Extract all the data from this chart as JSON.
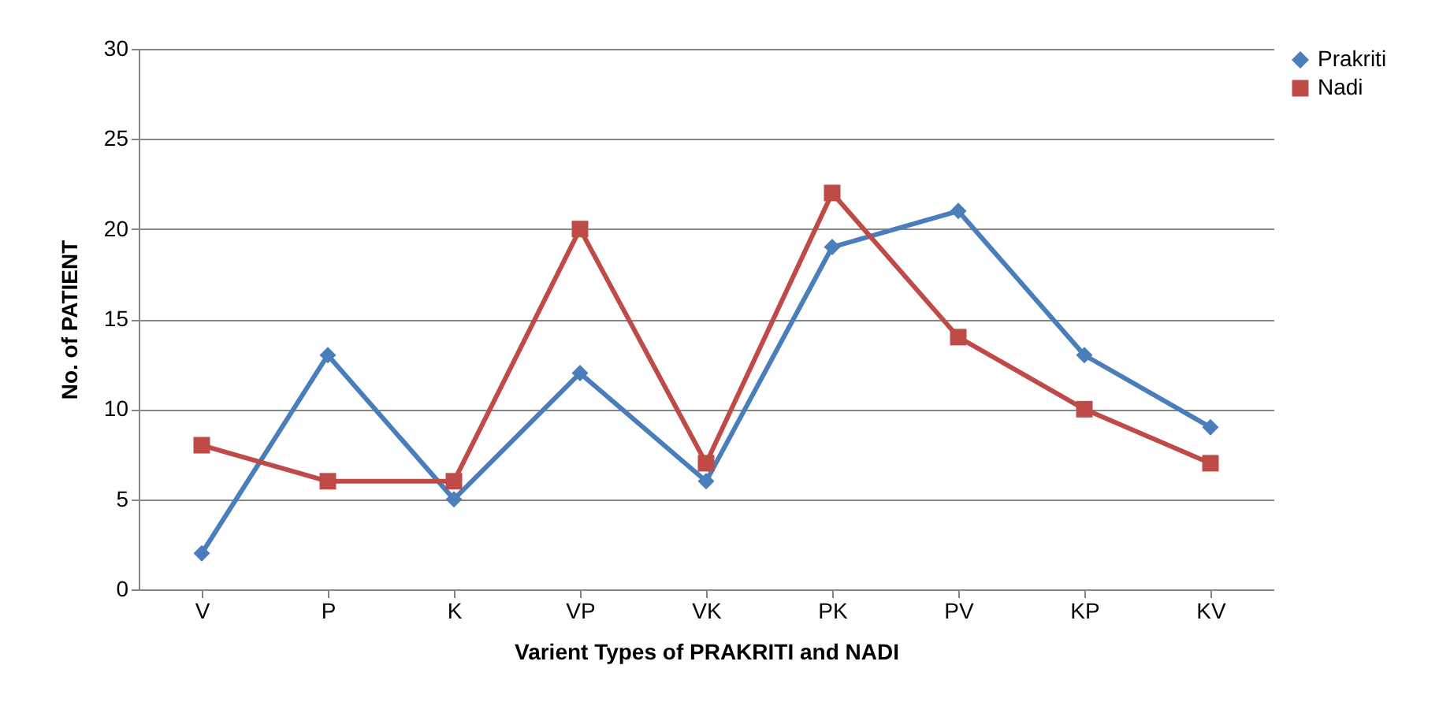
{
  "chart_data": {
    "type": "line",
    "xlabel": "Varient Types of PRAKRITI and NADI",
    "ylabel": "No. of  PATIENT",
    "categories": [
      "V",
      "P",
      "K",
      "VP",
      "VK",
      "PK",
      "PV",
      "KP",
      "KV"
    ],
    "series": [
      {
        "name": "Prakriti",
        "color": "#4a7ebb",
        "marker": "diamond",
        "values": [
          2,
          13,
          5,
          12,
          6,
          19,
          21,
          13,
          9
        ]
      },
      {
        "name": "Nadi",
        "color": "#be4b48",
        "marker": "square",
        "values": [
          8,
          6,
          6,
          20,
          7,
          22,
          14,
          10,
          7
        ]
      }
    ],
    "ylim": [
      0,
      30
    ],
    "yticks": [
      0,
      5,
      10,
      15,
      20,
      25,
      30
    ],
    "grid": "y",
    "legend": "top right",
    "line_style": "solid"
  }
}
